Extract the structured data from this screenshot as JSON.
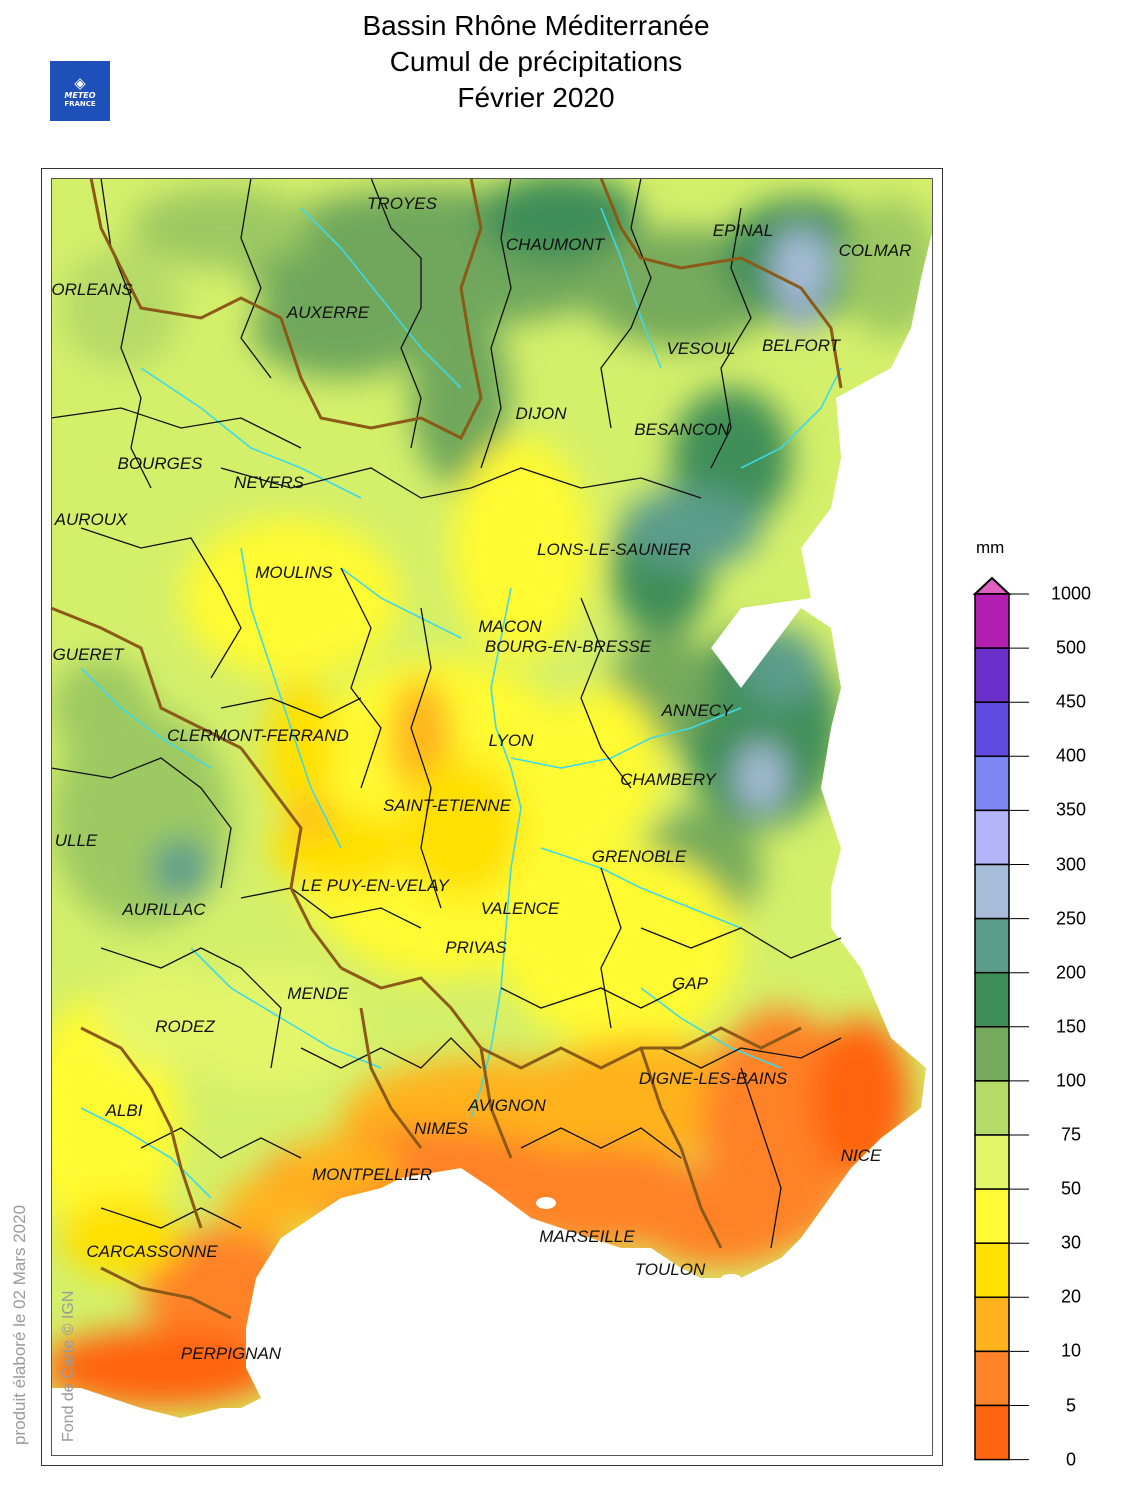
{
  "title": {
    "line1": "Bassin Rhône Méditerranée",
    "line2": "Cumul de précipitations",
    "line3": "Février 2020"
  },
  "logo": {
    "line1": "METEO",
    "line2": "FRANCE"
  },
  "side_text": {
    "produced": "produit élaboré le 02 Mars 2020",
    "fond": "Fond de Carte © IGN"
  },
  "legend": {
    "unit": "mm",
    "labels": [
      "1000",
      "500",
      "450",
      "400",
      "350",
      "300",
      "250",
      "200",
      "150",
      "100",
      "75",
      "50",
      "30",
      "20",
      "10",
      "5",
      "0"
    ],
    "colors": [
      "#b21fb1",
      "#6a2fc8",
      "#5f4bdf",
      "#7c86f4",
      "#b4b5f8",
      "#a6bcd8",
      "#5c9c8b",
      "#3f8e59",
      "#76aa5c",
      "#b6da67",
      "#e3f66a",
      "#fffa33",
      "#ffe000",
      "#ffb21e",
      "#ff8228",
      "#ff6411"
    ],
    "cap_color": "#e060c0"
  },
  "cities": [
    {
      "name": "TROYES"
    },
    {
      "name": "CHAUMONT"
    },
    {
      "name": "EPINAL"
    },
    {
      "name": "COLMAR"
    },
    {
      "name": "ORLEANS"
    },
    {
      "name": "AUXERRE"
    },
    {
      "name": "VESOUL"
    },
    {
      "name": "BELFORT"
    },
    {
      "name": "DIJON"
    },
    {
      "name": "BESANCON"
    },
    {
      "name": "BOURGES"
    },
    {
      "name": "NEVERS"
    },
    {
      "name": "AUROUX"
    },
    {
      "name": "LONS-LE-SAUNIER"
    },
    {
      "name": "MOULINS"
    },
    {
      "name": "MACON"
    },
    {
      "name": "BOURG-EN-BRESSE"
    },
    {
      "name": "GUERET"
    },
    {
      "name": "ANNECY"
    },
    {
      "name": "CLERMONT-FERRAND"
    },
    {
      "name": "LYON"
    },
    {
      "name": "CHAMBERY"
    },
    {
      "name": "SAINT-ETIENNE"
    },
    {
      "name": "ULLE"
    },
    {
      "name": "GRENOBLE"
    },
    {
      "name": "LE PUY-EN-VELAY"
    },
    {
      "name": "AURILLAC"
    },
    {
      "name": "VALENCE"
    },
    {
      "name": "PRIVAS"
    },
    {
      "name": "GAP"
    },
    {
      "name": "MENDE"
    },
    {
      "name": "RODEZ"
    },
    {
      "name": "DIGNE-LES-BAINS"
    },
    {
      "name": "ALBI"
    },
    {
      "name": "AVIGNON"
    },
    {
      "name": "NIMES"
    },
    {
      "name": "NICE"
    },
    {
      "name": "MONTPELLIER"
    },
    {
      "name": "CARCASSONNE"
    },
    {
      "name": "MARSEILLE"
    },
    {
      "name": "TOULON"
    },
    {
      "name": "PERPIGNAN"
    }
  ]
}
